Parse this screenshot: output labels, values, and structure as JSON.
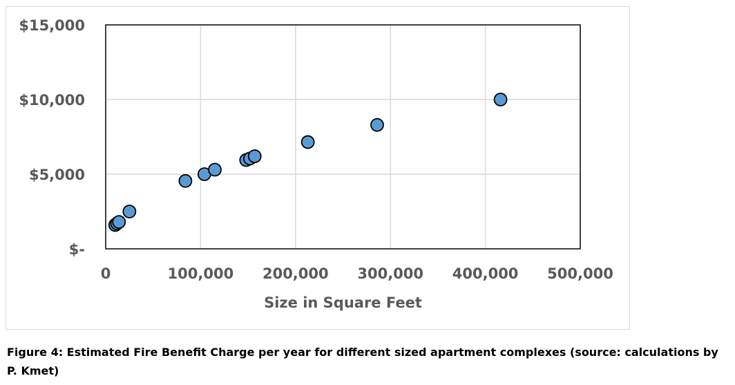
{
  "caption": "Figure 4: Estimated Fire Benefit Charge per year for different sized apartment complexes (source: calculations by P. Kmet)",
  "chart_data": {
    "type": "scatter",
    "title": "",
    "xlabel": "Size in Square Feet",
    "ylabel": "",
    "xlim": [
      0,
      500000
    ],
    "ylim": [
      0,
      15000
    ],
    "x_ticks": [
      0,
      100000,
      200000,
      300000,
      400000,
      500000
    ],
    "x_tick_labels": [
      "0",
      "100,000",
      "200,000",
      "300,000",
      "400,000",
      "500,000"
    ],
    "y_ticks": [
      0,
      5000,
      10000,
      15000
    ],
    "y_tick_labels": [
      "$-",
      "$5,000",
      "$10,000",
      "$15,000"
    ],
    "grid": true,
    "marker_color": "#5b9bd5",
    "marker_edge_color": "#000000",
    "series": [
      {
        "points": [
          {
            "x": 10000,
            "y": 1600
          },
          {
            "x": 12000,
            "y": 1700
          },
          {
            "x": 14000,
            "y": 1800
          },
          {
            "x": 25000,
            "y": 2500
          },
          {
            "x": 84000,
            "y": 4550
          },
          {
            "x": 104000,
            "y": 5000
          },
          {
            "x": 115000,
            "y": 5300
          },
          {
            "x": 148000,
            "y": 5950
          },
          {
            "x": 152000,
            "y": 6050
          },
          {
            "x": 157000,
            "y": 6200
          },
          {
            "x": 213000,
            "y": 7150
          },
          {
            "x": 286000,
            "y": 8300
          },
          {
            "x": 416000,
            "y": 10000
          }
        ]
      }
    ]
  }
}
